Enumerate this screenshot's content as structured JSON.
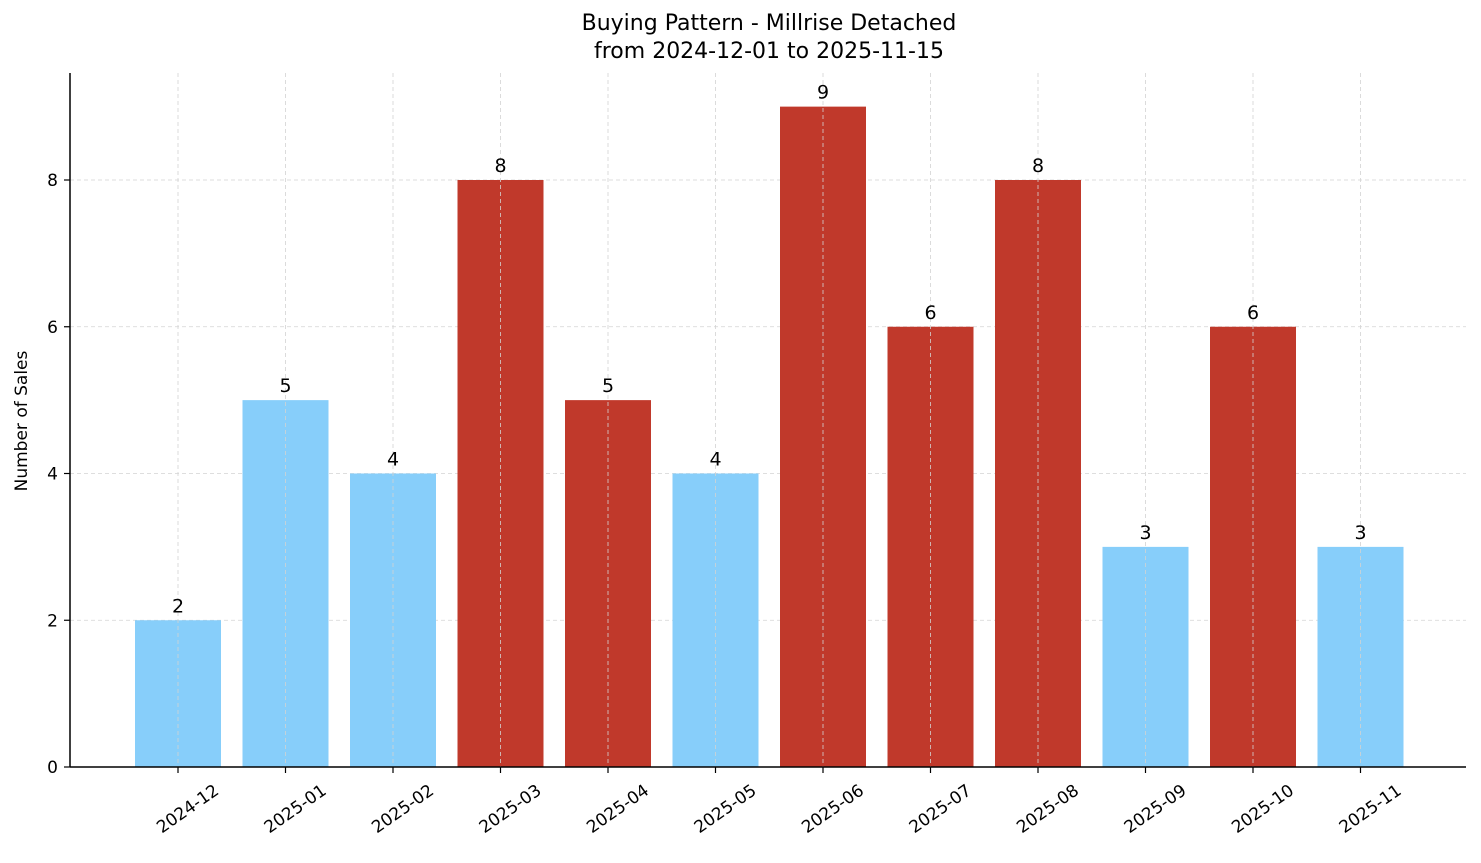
{
  "chart_data": {
    "type": "bar",
    "title": "Buying Pattern - Millrise Detached",
    "subtitle": "from 2024-12-01 to 2025-11-15",
    "xlabel": "",
    "ylabel": "Number of Sales",
    "ylim": [
      0,
      9.45
    ],
    "yticks": [
      0,
      2,
      4,
      6,
      8
    ],
    "grid": true,
    "legend": null,
    "categories": [
      "2024-12",
      "2025-01",
      "2025-02",
      "2025-03",
      "2025-04",
      "2025-05",
      "2025-06",
      "2025-07",
      "2025-08",
      "2025-09",
      "2025-10",
      "2025-11"
    ],
    "values": [
      2,
      5,
      4,
      8,
      5,
      4,
      9,
      6,
      8,
      3,
      6,
      3
    ],
    "bar_colors": [
      "#87CEFA",
      "#87CEFA",
      "#87CEFA",
      "#C0392B",
      "#C0392B",
      "#87CEFA",
      "#C0392B",
      "#C0392B",
      "#C0392B",
      "#87CEFA",
      "#C0392B",
      "#87CEFA"
    ],
    "data_labels": [
      "2",
      "5",
      "4",
      "8",
      "5",
      "4",
      "9",
      "6",
      "8",
      "3",
      "6",
      "3"
    ]
  },
  "colors": {
    "high": "#C0392B",
    "low": "#87CEFA",
    "grid": "#d3d3d3",
    "axis": "#000000"
  }
}
